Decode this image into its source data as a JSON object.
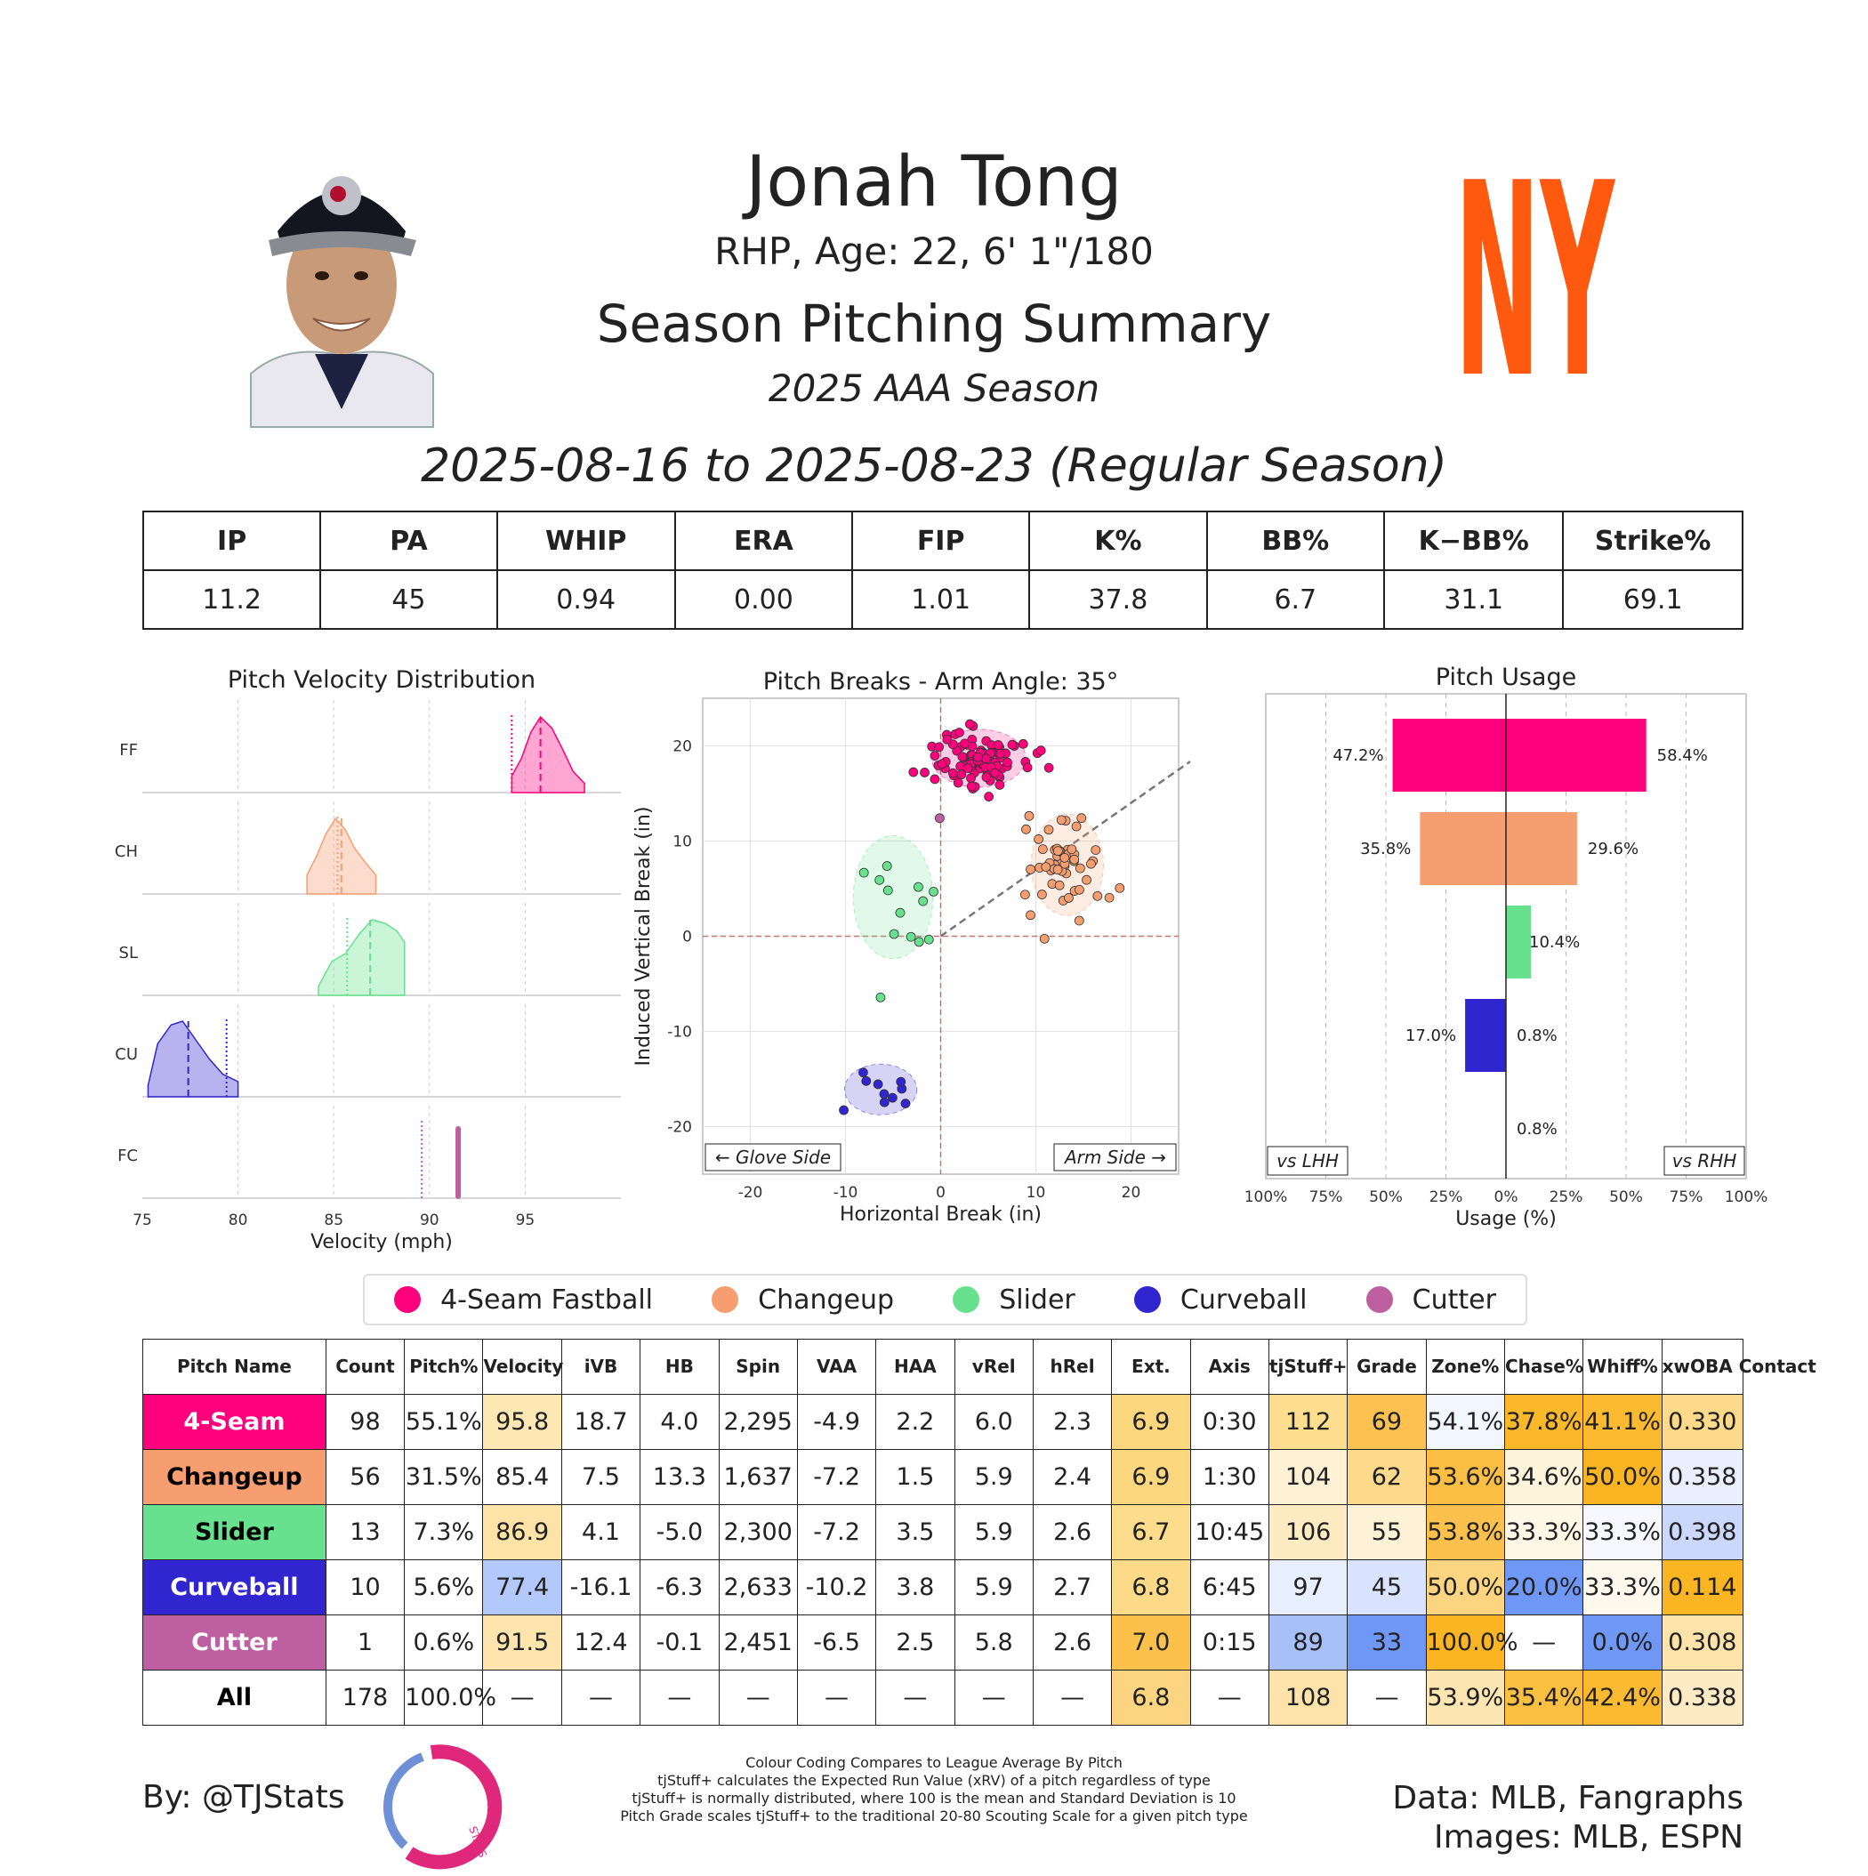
{
  "player": {
    "name": "Jonah Tong",
    "bio": "RHP, Age: 22, 6' 1\"/180",
    "summary_title": "Season Pitching Summary",
    "season": "2025 AAA Season",
    "date_range": "2025-08-16 to 2025-08-23 (Regular Season)",
    "team_logo_text": "NY",
    "team_color": "#FF5910"
  },
  "stat_line": {
    "headers": [
      "IP",
      "PA",
      "WHIP",
      "ERA",
      "FIP",
      "K%",
      "BB%",
      "K−BB%",
      "Strike%"
    ],
    "values": [
      "11.2",
      "45",
      "0.94",
      "0.00",
      "1.01",
      "37.8",
      "6.7",
      "31.1",
      "69.1"
    ]
  },
  "pitch_colors": {
    "FF": "#FF007D",
    "CH": "#F79E70",
    "SL": "#67E18D",
    "CU": "#3025CE",
    "FC": "#BE5FA0"
  },
  "chart_data": [
    {
      "type": "area",
      "title": "Pitch Velocity Distribution",
      "xlabel": "Velocity (mph)",
      "ylabel": "",
      "xlim": [
        75,
        100
      ],
      "x_ticks": [
        "75",
        "80",
        "85",
        "90",
        "95"
      ],
      "rows": [
        {
          "label": "FF",
          "color": "#FF007D",
          "mean": 95.8,
          "league_mean": 94.3,
          "x": [
            94.3,
            94.8,
            95.3,
            95.8,
            96.4,
            97.0,
            97.5,
            98.1
          ],
          "density": [
            0.22,
            0.45,
            0.8,
            1.0,
            0.85,
            0.55,
            0.28,
            0.12
          ]
        },
        {
          "label": "CH",
          "color": "#F79E70",
          "mean": 85.4,
          "league_mean": 85.2,
          "x": [
            83.6,
            84.1,
            84.6,
            85.1,
            85.6,
            86.1,
            86.7,
            87.2
          ],
          "density": [
            0.25,
            0.5,
            0.8,
            1.0,
            0.85,
            0.6,
            0.4,
            0.25
          ]
        },
        {
          "label": "SL",
          "color": "#67E18D",
          "mean": 86.9,
          "league_mean": 85.7,
          "x": [
            84.2,
            84.9,
            85.6,
            86.3,
            87.0,
            87.7,
            88.3,
            88.7
          ],
          "density": [
            0.12,
            0.45,
            0.55,
            0.8,
            1.0,
            0.95,
            0.85,
            0.7
          ]
        },
        {
          "label": "CU",
          "color": "#3025CE",
          "mean": 77.4,
          "league_mean": 79.4,
          "x": [
            75.3,
            75.8,
            76.5,
            77.1,
            77.8,
            78.5,
            79.2,
            80.0
          ],
          "density": [
            0.15,
            0.7,
            0.95,
            1.0,
            0.75,
            0.5,
            0.3,
            0.2
          ]
        },
        {
          "label": "FC",
          "color": "#BE5FA0",
          "mean": 91.5,
          "league_mean": 89.6,
          "x": [
            91.5
          ],
          "density": [
            1.0
          ]
        }
      ]
    },
    {
      "type": "scatter",
      "title": "Pitch Breaks - Arm Angle: 35°",
      "xlabel": "Horizontal Break (in)",
      "ylabel": "Induced Vertical Break (in)",
      "xlim": [
        -25,
        25
      ],
      "ylim": [
        -25,
        25
      ],
      "x_ticks": [
        "-20",
        "-10",
        "0",
        "10",
        "20"
      ],
      "y_ticks": [
        "20",
        "10",
        "0",
        "-10",
        "-20"
      ],
      "arm_angle_deg": 35,
      "glove_side_label": "← Glove Side",
      "arm_side_label": "Arm Side →",
      "series": [
        {
          "name": "4-Seam Fastball",
          "code": "FF",
          "color": "#FF007D",
          "center": [
            4.0,
            18.7
          ],
          "spread": [
            2.6,
            1.6
          ],
          "points": 98
        },
        {
          "name": "Changeup",
          "code": "CH",
          "color": "#F79E70",
          "center": [
            13.3,
            7.5
          ],
          "spread": [
            2.0,
            2.8
          ],
          "points": 56
        },
        {
          "name": "Slider",
          "code": "SL",
          "color": "#67E18D",
          "center": [
            -5.0,
            4.1
          ],
          "spread": [
            2.2,
            3.4
          ],
          "points": 13
        },
        {
          "name": "Curveball",
          "code": "CU",
          "color": "#3025CE",
          "center": [
            -6.3,
            -16.1
          ],
          "spread": [
            2.0,
            1.4
          ],
          "points": 10
        },
        {
          "name": "Cutter",
          "code": "FC",
          "color": "#BE5FA0",
          "center": [
            -0.1,
            12.4
          ],
          "spread": [
            0,
            0
          ],
          "points": 1
        }
      ]
    },
    {
      "type": "bar",
      "title": "Pitch Usage",
      "xlabel": "Usage (%)",
      "ylabel": "",
      "xlim": [
        -100,
        100
      ],
      "x_ticks": [
        "100%",
        "75%",
        "50%",
        "25%",
        "0%",
        "25%",
        "50%",
        "75%",
        "100%"
      ],
      "left_label": "vs LHH",
      "right_label": "vs RHH",
      "categories": [
        "FF",
        "CH",
        "SL",
        "CU",
        "FC"
      ],
      "series": [
        {
          "name": "vs LHH",
          "values": [
            47.2,
            35.8,
            0.0,
            17.0,
            0.0
          ],
          "labels": [
            "47.2%",
            "35.8%",
            "",
            "17.0%",
            ""
          ]
        },
        {
          "name": "vs RHH",
          "values": [
            58.4,
            29.6,
            10.4,
            0.8,
            0.8
          ],
          "labels": [
            "58.4%",
            "29.6%",
            "10.4%",
            "0.8%",
            "0.8%"
          ]
        }
      ]
    }
  ],
  "legend": [
    {
      "label": "4-Seam Fastball",
      "color": "#FF007D"
    },
    {
      "label": "Changeup",
      "color": "#F79E70"
    },
    {
      "label": "Slider",
      "color": "#67E18D"
    },
    {
      "label": "Curveball",
      "color": "#3025CE"
    },
    {
      "label": "Cutter",
      "color": "#BE5FA0"
    }
  ],
  "pitch_table": {
    "headers": [
      "Pitch Name",
      "Count",
      "Pitch%",
      "Velocity",
      "iVB",
      "HB",
      "Spin",
      "VAA",
      "HAA",
      "vRel",
      "hRel",
      "Ext.",
      "Axis",
      "tjStuff+",
      "Grade",
      "Zone%",
      "Chase%",
      "Whiff%",
      "xwOBA Contact"
    ],
    "rows": [
      {
        "name": "4-Seam",
        "bg": "#FF007D",
        "fg": "#ffffff",
        "cells": [
          "98",
          "55.1%",
          "95.8",
          "18.7",
          "4.0",
          "2,295",
          "-4.9",
          "2.2",
          "6.0",
          "2.3",
          "6.9",
          "0:30",
          "112",
          "69",
          "54.1%",
          "37.8%",
          "41.1%",
          "0.330"
        ],
        "colors": [
          "#ffffff",
          "#ffffff",
          "#FDE8B4",
          "#ffffff",
          "#ffffff",
          "#ffffff",
          "#ffffff",
          "#ffffff",
          "#ffffff",
          "#ffffff",
          "#FCD77E",
          "#ffffff",
          "#FDDD8E",
          "#FCC24F",
          "#F2F6FF",
          "#FBB829",
          "#FCBA30",
          "#FDDA8A"
        ]
      },
      {
        "name": "Changeup",
        "bg": "#F79E70",
        "fg": "#000000",
        "cells": [
          "56",
          "31.5%",
          "85.4",
          "7.5",
          "13.3",
          "1,637",
          "-7.2",
          "1.5",
          "5.9",
          "2.4",
          "6.9",
          "1:30",
          "104",
          "62",
          "53.6%",
          "34.6%",
          "50.0%",
          "0.358"
        ],
        "colors": [
          "#ffffff",
          "#ffffff",
          "#ffffff",
          "#ffffff",
          "#ffffff",
          "#ffffff",
          "#ffffff",
          "#ffffff",
          "#ffffff",
          "#ffffff",
          "#FCD77E",
          "#ffffff",
          "#FEF1D4",
          "#FDDA8A",
          "#FCBF43",
          "#FEF3DB",
          "#FBB523",
          "#E9EFFE"
        ]
      },
      {
        "name": "Slider",
        "bg": "#67E18D",
        "fg": "#000000",
        "cells": [
          "13",
          "7.3%",
          "86.9",
          "4.1",
          "-5.0",
          "2,300",
          "-7.2",
          "3.5",
          "5.9",
          "2.6",
          "6.7",
          "10:45",
          "106",
          "55",
          "53.8%",
          "33.3%",
          "33.3%",
          "0.398"
        ],
        "colors": [
          "#ffffff",
          "#ffffff",
          "#FDE3A6",
          "#ffffff",
          "#ffffff",
          "#ffffff",
          "#ffffff",
          "#ffffff",
          "#ffffff",
          "#ffffff",
          "#FDDC8C",
          "#ffffff",
          "#FEEBC2",
          "#FEF2D6",
          "#FCC14C",
          "#FFF7E6",
          "#F7F8FF",
          "#CBD8FD"
        ]
      },
      {
        "name": "Curveball",
        "bg": "#3025CE",
        "fg": "#ffffff",
        "cells": [
          "10",
          "5.6%",
          "77.4",
          "-16.1",
          "-6.3",
          "2,633",
          "-10.2",
          "3.8",
          "5.9",
          "2.7",
          "6.8",
          "6:45",
          "97",
          "45",
          "50.0%",
          "20.0%",
          "33.3%",
          "0.114"
        ],
        "colors": [
          "#ffffff",
          "#ffffff",
          "#B4C9FB",
          "#ffffff",
          "#ffffff",
          "#ffffff",
          "#ffffff",
          "#ffffff",
          "#ffffff",
          "#ffffff",
          "#FDDA87",
          "#ffffff",
          "#E7EEFE",
          "#D9E3FE",
          "#FDD581",
          "#6F98F6",
          "#FFF8EC",
          "#FBB522"
        ]
      },
      {
        "name": "Cutter",
        "bg": "#BE5FA0",
        "fg": "#ffffff",
        "cells": [
          "1",
          "0.6%",
          "91.5",
          "12.4",
          "-0.1",
          "2,451",
          "-6.5",
          "2.5",
          "5.8",
          "2.6",
          "7.0",
          "0:15",
          "89",
          "33",
          "100.0%",
          "—",
          "0.0%",
          "0.308"
        ],
        "colors": [
          "#ffffff",
          "#ffffff",
          "#FDE5AD",
          "#ffffff",
          "#ffffff",
          "#ffffff",
          "#ffffff",
          "#ffffff",
          "#ffffff",
          "#ffffff",
          "#FBC14A",
          "#ffffff",
          "#A8C0FA",
          "#6F98F6",
          "#FBB522",
          "#ffffff",
          "#6F98F6",
          "#FDE2A9"
        ]
      },
      {
        "name": "All",
        "bg": "#ffffff",
        "fg": "#000000",
        "cells": [
          "178",
          "100.0%",
          "—",
          "—",
          "—",
          "—",
          "—",
          "—",
          "—",
          "—",
          "6.8",
          "—",
          "108",
          "—",
          "53.9%",
          "35.4%",
          "42.4%",
          "0.338"
        ],
        "colors": [
          "#ffffff",
          "#ffffff",
          "#ffffff",
          "#ffffff",
          "#ffffff",
          "#ffffff",
          "#ffffff",
          "#ffffff",
          "#ffffff",
          "#ffffff",
          "#FDD581",
          "#ffffff",
          "#FDE2A9",
          "#ffffff",
          "#FDE6B2",
          "#FBBF42",
          "#FCBA30",
          "#FEEBC6"
        ]
      }
    ]
  },
  "footer": {
    "byline": "By: @TJStats",
    "logo_text": "STATS",
    "notes": [
      "Colour Coding Compares to League Average By Pitch",
      "tjStuff+ calculates the Expected Run Value (xRV) of a pitch regardless of type",
      "tjStuff+ is normally distributed, where 100 is the mean and Standard Deviation is 10",
      "Pitch Grade scales tjStuff+ to the traditional 20-80 Scouting Scale for a given pitch type"
    ],
    "credits_line1": "Data: MLB, Fangraphs",
    "credits_line2": "Images: MLB, ESPN"
  }
}
